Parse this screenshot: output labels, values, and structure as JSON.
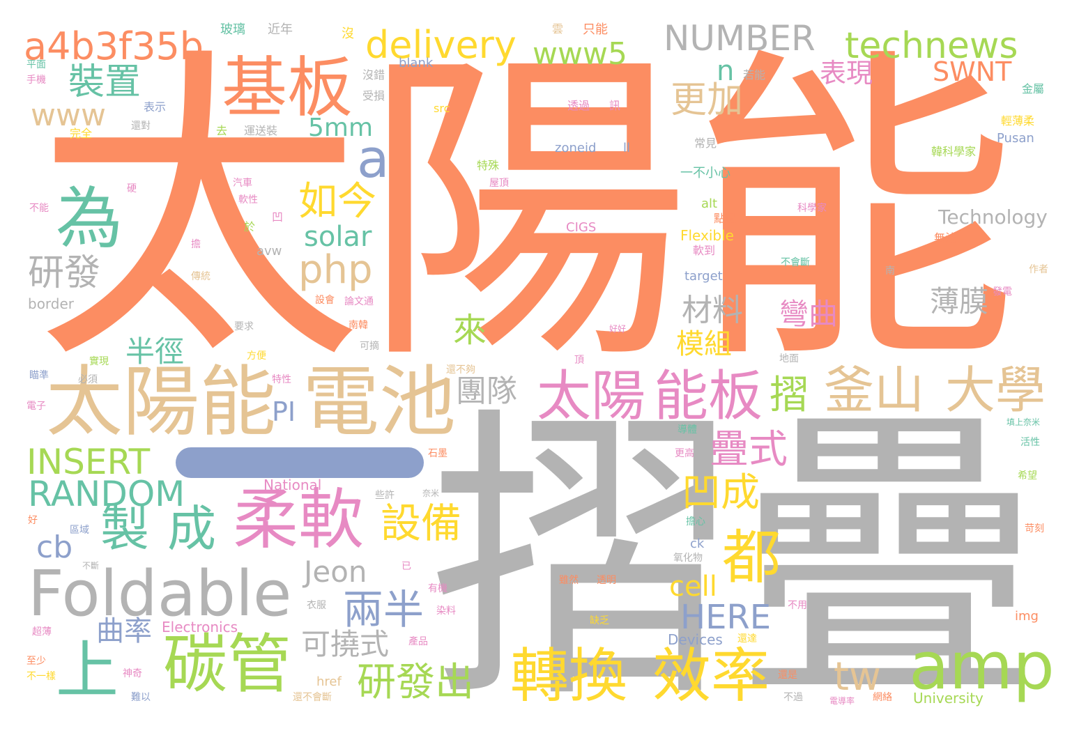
{
  "palette": {
    "orange": "#FC8D62",
    "gray": "#B3B3B3",
    "tan": "#E5C494",
    "green": "#A6D854",
    "pink": "#E78AC3",
    "teal": "#66C2A5",
    "yellow": "#FFD92F",
    "blue": "#8DA0CB"
  },
  "dash_color": "blue",
  "words": [
    {
      "t": "太陽能",
      "c": "orange"
    },
    {
      "t": "摺疊",
      "c": "gray"
    },
    {
      "t": "太陽能",
      "c": "tan"
    },
    {
      "t": "電池",
      "c": "tan"
    },
    {
      "t": "柔軟",
      "c": "pink"
    },
    {
      "t": "Foldable",
      "c": "gray"
    },
    {
      "t": "碳管",
      "c": "green"
    },
    {
      "t": "基板",
      "c": "orange"
    },
    {
      "t": "為",
      "c": "teal"
    },
    {
      "t": "太陽",
      "c": "pink"
    },
    {
      "t": "能板",
      "c": "pink"
    },
    {
      "t": "釜山",
      "c": "tan"
    },
    {
      "t": "大學",
      "c": "tan"
    },
    {
      "t": "轉換",
      "c": "yellow"
    },
    {
      "t": "效率",
      "c": "yellow"
    },
    {
      "t": "amp",
      "c": "green"
    },
    {
      "t": "都",
      "c": "yellow"
    },
    {
      "t": "上",
      "c": "teal"
    },
    {
      "t": "a4b3f35b",
      "c": "orange"
    },
    {
      "t": "delivery",
      "c": "yellow"
    },
    {
      "t": "NUMBER",
      "c": "gray"
    },
    {
      "t": "technews",
      "c": "green"
    },
    {
      "t": "www5",
      "c": "green"
    },
    {
      "t": "裝置",
      "c": "teal"
    },
    {
      "t": "www",
      "c": "tan"
    },
    {
      "t": "a",
      "c": "blue"
    },
    {
      "t": "n",
      "c": "teal"
    },
    {
      "t": "更加",
      "c": "tan"
    },
    {
      "t": "表現",
      "c": "pink"
    },
    {
      "t": "SWNT",
      "c": "orange"
    },
    {
      "t": "5mm",
      "c": "teal"
    },
    {
      "t": "如今",
      "c": "yellow"
    },
    {
      "t": "php",
      "c": "tan"
    },
    {
      "t": "solar",
      "c": "teal"
    },
    {
      "t": "研發",
      "c": "gray"
    },
    {
      "t": "半徑",
      "c": "teal"
    },
    {
      "t": "來",
      "c": "green"
    },
    {
      "t": "材料",
      "c": "gray"
    },
    {
      "t": "模組",
      "c": "yellow"
    },
    {
      "t": "彎曲",
      "c": "pink"
    },
    {
      "t": "薄膜",
      "c": "gray"
    },
    {
      "t": "摺",
      "c": "green"
    },
    {
      "t": "團隊",
      "c": "gray"
    },
    {
      "t": "疊式",
      "c": "pink"
    },
    {
      "t": "凹成",
      "c": "yellow"
    },
    {
      "t": "INSERT",
      "c": "green"
    },
    {
      "t": "PI",
      "c": "blue"
    },
    {
      "t": "RANDOM",
      "c": "teal"
    },
    {
      "t": "製",
      "c": "teal"
    },
    {
      "t": "成",
      "c": "teal"
    },
    {
      "t": "設備",
      "c": "yellow"
    },
    {
      "t": "cb",
      "c": "blue"
    },
    {
      "t": "Jeon",
      "c": "gray"
    },
    {
      "t": "cell",
      "c": "yellow"
    },
    {
      "t": "兩半",
      "c": "blue"
    },
    {
      "t": "HERE",
      "c": "blue"
    },
    {
      "t": "曲率",
      "c": "blue"
    },
    {
      "t": "可撓式",
      "c": "gray"
    },
    {
      "t": "研發出",
      "c": "green"
    },
    {
      "t": "tw",
      "c": "tan"
    },
    {
      "t": "Technology",
      "c": "gray"
    },
    {
      "t": "border",
      "c": "gray"
    },
    {
      "t": "Electronics",
      "c": "pink"
    },
    {
      "t": "National",
      "c": "pink"
    },
    {
      "t": "University",
      "c": "green"
    },
    {
      "t": "Devices",
      "c": "blue"
    },
    {
      "t": "Flexible",
      "c": "yellow"
    },
    {
      "t": "target",
      "c": "blue"
    },
    {
      "t": "CIGS",
      "c": "pink"
    },
    {
      "t": "zoneid",
      "c": "blue"
    },
    {
      "t": "ll",
      "c": "blue"
    },
    {
      "t": "Pusan",
      "c": "blue"
    },
    {
      "t": "blank",
      "c": "blue"
    },
    {
      "t": "src",
      "c": "yellow"
    },
    {
      "t": "alt",
      "c": "green"
    },
    {
      "t": "avw",
      "c": "gray"
    },
    {
      "t": "href",
      "c": "tan"
    },
    {
      "t": "ck",
      "c": "blue"
    },
    {
      "t": "img",
      "c": "orange"
    },
    {
      "t": "玻璃",
      "c": "teal"
    },
    {
      "t": "近年",
      "c": "gray"
    },
    {
      "t": "沒",
      "c": "yellow"
    },
    {
      "t": "雲",
      "c": "tan"
    },
    {
      "t": "只能",
      "c": "orange"
    },
    {
      "t": "平面",
      "c": "teal"
    },
    {
      "t": "手機",
      "c": "pink"
    },
    {
      "t": "表示",
      "c": "blue"
    },
    {
      "t": "還對",
      "c": "gray"
    },
    {
      "t": "完全",
      "c": "yellow"
    },
    {
      "t": "去",
      "c": "green"
    },
    {
      "t": "運送裝",
      "c": "gray"
    },
    {
      "t": "沒錯",
      "c": "gray"
    },
    {
      "t": "受損",
      "c": "gray"
    },
    {
      "t": "若能",
      "c": "gray"
    },
    {
      "t": "金屬",
      "c": "teal"
    },
    {
      "t": "輕薄柔",
      "c": "yellow"
    },
    {
      "t": "韓科學家",
      "c": "green"
    },
    {
      "t": "透過",
      "c": "pink"
    },
    {
      "t": "訊",
      "c": "pink"
    },
    {
      "t": "常見",
      "c": "gray"
    },
    {
      "t": "一不小心",
      "c": "teal"
    },
    {
      "t": "特殊",
      "c": "green"
    },
    {
      "t": "屋頂",
      "c": "pink"
    },
    {
      "t": "汽車",
      "c": "pink"
    },
    {
      "t": "軟性",
      "c": "pink"
    },
    {
      "t": "於",
      "c": "green"
    },
    {
      "t": "凹",
      "c": "pink"
    },
    {
      "t": "硬",
      "c": "pink"
    },
    {
      "t": "不能",
      "c": "pink"
    },
    {
      "t": "科學家",
      "c": "pink"
    },
    {
      "t": "不會斷",
      "c": "teal"
    },
    {
      "t": "無法",
      "c": "orange"
    },
    {
      "t": "點過",
      "c": "orange"
    },
    {
      "t": "擔",
      "c": "pink"
    },
    {
      "t": "傳統",
      "c": "tan"
    },
    {
      "t": "軟到",
      "c": "pink"
    },
    {
      "t": "作者",
      "c": "tan"
    },
    {
      "t": "南",
      "c": "gray"
    },
    {
      "t": "發電",
      "c": "pink"
    },
    {
      "t": "設會",
      "c": "orange"
    },
    {
      "t": "論文通",
      "c": "pink"
    },
    {
      "t": "南韓",
      "c": "orange"
    },
    {
      "t": "要求",
      "c": "gray"
    },
    {
      "t": "可摘",
      "c": "gray"
    },
    {
      "t": "方便",
      "c": "yellow"
    },
    {
      "t": "實現",
      "c": "green"
    },
    {
      "t": "好好",
      "c": "pink"
    },
    {
      "t": "頂",
      "c": "pink"
    },
    {
      "t": "還不夠",
      "c": "tan"
    },
    {
      "t": "地面",
      "c": "gray"
    },
    {
      "t": "瞄準",
      "c": "blue"
    },
    {
      "t": "必須",
      "c": "gray"
    },
    {
      "t": "特性",
      "c": "pink"
    },
    {
      "t": "電子",
      "c": "pink"
    },
    {
      "t": "導體",
      "c": "teal"
    },
    {
      "t": "更高",
      "c": "pink"
    },
    {
      "t": "填上奈米",
      "c": "teal"
    },
    {
      "t": "活性",
      "c": "teal"
    },
    {
      "t": "石墨",
      "c": "orange"
    },
    {
      "t": "希望",
      "c": "green"
    },
    {
      "t": "些許",
      "c": "gray"
    },
    {
      "t": "奈米",
      "c": "gray"
    },
    {
      "t": "好",
      "c": "orange"
    },
    {
      "t": "區域",
      "c": "blue"
    },
    {
      "t": "擔心",
      "c": "teal"
    },
    {
      "t": "氧化物",
      "c": "gray"
    },
    {
      "t": "苛刻",
      "c": "orange"
    },
    {
      "t": "不斷",
      "c": "gray"
    },
    {
      "t": "已",
      "c": "pink"
    },
    {
      "t": "有機",
      "c": "pink"
    },
    {
      "t": "染料",
      "c": "pink"
    },
    {
      "t": "雖然",
      "c": "orange"
    },
    {
      "t": "透明",
      "c": "orange"
    },
    {
      "t": "缺乏",
      "c": "yellow"
    },
    {
      "t": "不用",
      "c": "pink"
    },
    {
      "t": "衣服",
      "c": "gray"
    },
    {
      "t": "超薄",
      "c": "pink"
    },
    {
      "t": "至少",
      "c": "orange"
    },
    {
      "t": "不一樣",
      "c": "yellow"
    },
    {
      "t": "神奇",
      "c": "pink"
    },
    {
      "t": "難以",
      "c": "blue"
    },
    {
      "t": "產品",
      "c": "pink"
    },
    {
      "t": "還達",
      "c": "yellow"
    },
    {
      "t": "不過",
      "c": "gray"
    },
    {
      "t": "還是",
      "c": "orange"
    },
    {
      "t": "還不會斷",
      "c": "tan"
    },
    {
      "t": "網絡",
      "c": "orange"
    },
    {
      "t": "電導率",
      "c": "pink"
    }
  ]
}
